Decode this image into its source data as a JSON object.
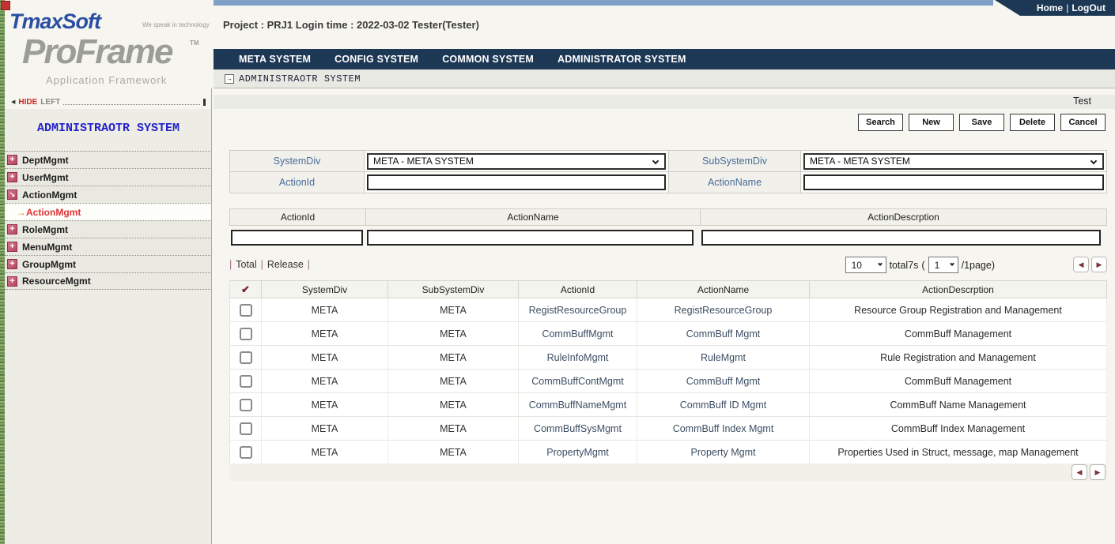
{
  "header": {
    "project_info": "Project : PRJ1 Login time : 2022-03-02 Tester(Tester)",
    "home_label": "Home",
    "separator": "|",
    "logout_label": "LogOut"
  },
  "logo": {
    "brand": "TmaxSoft",
    "tagline": "We speak in technology",
    "product": "ProFrame",
    "trademark": "TM",
    "product_subtitle": "Application Framework"
  },
  "nav": {
    "items": [
      {
        "label": "META SYSTEM"
      },
      {
        "label": "CONFIG SYSTEM"
      },
      {
        "label": "COMMON SYSTEM"
      },
      {
        "label": "ADMINISTRATOR SYSTEM"
      }
    ]
  },
  "breadcrumb": {
    "label": "ADMINISTRAOTR SYSTEM"
  },
  "sidebar": {
    "hide_left": {
      "arrow": "◀",
      "hide": "HIDE",
      "left": "LEFT"
    },
    "title": "ADMINISTRAOTR SYSTEM",
    "items": [
      {
        "label": "DeptMgmt",
        "icon": "plus"
      },
      {
        "label": "UserMgmt",
        "icon": "plus"
      },
      {
        "label": "ActionMgmt",
        "icon": "open"
      },
      {
        "label": "RoleMgmt",
        "icon": "plus"
      },
      {
        "label": "MenuMgmt",
        "icon": "plus"
      },
      {
        "label": "GroupMgmt",
        "icon": "plus"
      },
      {
        "label": "ResourceMgmt",
        "icon": "plus"
      }
    ],
    "active_subitem": {
      "arrow": "→",
      "label": "ActionMgmt"
    }
  },
  "toolbar": {
    "env_label": "Test",
    "buttons": [
      {
        "label": "Search"
      },
      {
        "label": "New"
      },
      {
        "label": "Save"
      },
      {
        "label": "Delete"
      },
      {
        "label": "Cancel"
      }
    ]
  },
  "filter_form": {
    "system_div": {
      "label": "SystemDiv",
      "value": "META - META SYSTEM"
    },
    "sub_system_div": {
      "label": "SubSystemDiv",
      "value": "META - META SYSTEM"
    },
    "action_id": {
      "label": "ActionId",
      "value": ""
    },
    "action_name": {
      "label": "ActionName",
      "value": ""
    }
  },
  "entry_form": {
    "headers": [
      "ActionId",
      "ActionName",
      "ActionDescrption"
    ],
    "values": [
      "",
      "",
      ""
    ]
  },
  "list_controls": {
    "pipe": "|",
    "tabs": [
      "Total",
      "Release"
    ],
    "page_size": "10",
    "total_label": "total7s",
    "open_paren": "(",
    "current_page": "1",
    "page_suffix": "/1page)"
  },
  "icons": {
    "menu_plus": "+",
    "menu_open": "↘",
    "crumb_arrow": "→",
    "check_all": "✔",
    "prev": "◀",
    "next": "▶"
  },
  "table": {
    "headers": {
      "system_div": "SystemDiv",
      "sub_system_div": "SubSystemDiv",
      "action_id": "ActionId",
      "action_name": "ActionName",
      "action_descrption": "ActionDescrption"
    },
    "rows": [
      {
        "system_div": "META",
        "sub_system_div": "META",
        "action_id": "RegistResourceGroup",
        "action_name": "RegistResourceGroup",
        "action_descrption": "Resource Group Registration and Management"
      },
      {
        "system_div": "META",
        "sub_system_div": "META",
        "action_id": "CommBuffMgmt",
        "action_name": "CommBuff Mgmt",
        "action_descrption": "CommBuff Management"
      },
      {
        "system_div": "META",
        "sub_system_div": "META",
        "action_id": "RuleInfoMgmt",
        "action_name": "RuleMgmt",
        "action_descrption": "Rule Registration and Management"
      },
      {
        "system_div": "META",
        "sub_system_div": "META",
        "action_id": "CommBuffContMgmt",
        "action_name": "CommBuff Mgmt",
        "action_descrption": "CommBuff Management"
      },
      {
        "system_div": "META",
        "sub_system_div": "META",
        "action_id": "CommBuffNameMgmt",
        "action_name": "CommBuff ID Mgmt",
        "action_descrption": "CommBuff Name Management"
      },
      {
        "system_div": "META",
        "sub_system_div": "META",
        "action_id": "CommBuffSysMgmt",
        "action_name": "CommBuff Index Mgmt",
        "action_descrption": "CommBuff Index Management"
      },
      {
        "system_div": "META",
        "sub_system_div": "META",
        "action_id": "PropertyMgmt",
        "action_name": "Property Mgmt",
        "action_descrption": "Properties Used in Struct, message, map Management"
      }
    ]
  }
}
